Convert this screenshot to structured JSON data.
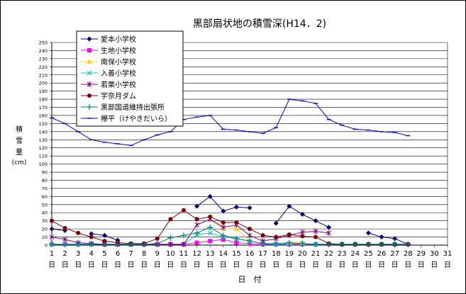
{
  "chart_data": {
    "type": "line",
    "title": "黒部扇状地の積雪深(H14．2)",
    "xlabel": "日　付",
    "ylabel": "積雪量(cm)",
    "ylabel_chars": [
      "積",
      "雪",
      "量"
    ],
    "yunit": "(cm)",
    "ylim": [
      0,
      250
    ],
    "ytick_step": 10,
    "grid": true,
    "legend_position": "top-left",
    "x": [
      1,
      2,
      3,
      4,
      5,
      6,
      7,
      8,
      9,
      10,
      11,
      12,
      13,
      14,
      15,
      16,
      17,
      18,
      19,
      20,
      21,
      22,
      23,
      24,
      25,
      26,
      27,
      28,
      29,
      30,
      31
    ],
    "xtick_suffix": "日",
    "series": [
      {
        "name": "愛本小学校",
        "color": "#000080",
        "marker": "diamond",
        "values": [
          20,
          18,
          null,
          14,
          12,
          6,
          null,
          null,
          null,
          null,
          null,
          48,
          60,
          42,
          47,
          46,
          null,
          27,
          48,
          38,
          30,
          22,
          null,
          null,
          15,
          10,
          8,
          1,
          null,
          null,
          null
        ]
      },
      {
        "name": "生地小学校",
        "color": "#FF00FF",
        "marker": "square",
        "values": [
          1,
          1,
          1,
          1,
          1,
          1,
          1,
          1,
          1,
          1,
          1,
          3,
          5,
          7,
          3,
          2,
          1,
          1,
          1,
          1,
          1,
          1,
          1,
          1,
          1,
          1,
          1,
          1,
          null,
          null,
          null
        ]
      },
      {
        "name": "南保小学校",
        "color": "#FFD700",
        "marker": "triangle",
        "values": [
          null,
          null,
          null,
          null,
          null,
          null,
          null,
          null,
          null,
          null,
          null,
          null,
          32,
          20,
          20,
          5,
          null,
          null,
          3,
          3,
          null,
          null,
          null,
          null,
          null,
          null,
          null,
          null,
          null,
          null,
          null
        ]
      },
      {
        "name": "入善小学校",
        "color": "#00CCCC",
        "marker": "x",
        "values": [
          1,
          1,
          1,
          1,
          1,
          1,
          1,
          1,
          1,
          1,
          1,
          13,
          15,
          10,
          8,
          5,
          2,
          1,
          2,
          2,
          1,
          1,
          1,
          1,
          1,
          1,
          1,
          1,
          null,
          null,
          null
        ]
      },
      {
        "name": "若栗小学校",
        "color": "#800080",
        "marker": "star",
        "values": [
          10,
          7,
          3,
          2,
          1,
          1,
          1,
          1,
          1,
          1,
          1,
          25,
          32,
          22,
          25,
          12,
          5,
          8,
          12,
          16,
          17,
          15,
          null,
          null,
          null,
          null,
          null,
          null,
          null,
          null,
          null
        ]
      },
      {
        "name": "宇奈月ダム",
        "color": "#800000",
        "marker": "circle",
        "values": [
          30,
          21,
          15,
          10,
          5,
          3,
          2,
          2,
          8,
          32,
          43,
          32,
          35,
          28,
          28,
          20,
          12,
          10,
          13,
          11,
          10,
          2,
          1,
          1,
          1,
          1,
          1,
          1,
          null,
          null,
          null
        ]
      },
      {
        "name": "黒部国道維持出張所",
        "color": "#008080",
        "marker": "plus",
        "values": [
          1,
          1,
          1,
          1,
          1,
          1,
          1,
          1,
          2,
          9,
          12,
          15,
          22,
          12,
          8,
          5,
          2,
          2,
          3,
          2,
          1,
          1,
          1,
          1,
          1,
          1,
          1,
          1,
          null,
          null,
          null
        ]
      },
      {
        "name": "欅平（けやきだいら）",
        "color": "#0000FF",
        "marker": "dash",
        "values": [
          157,
          150,
          140,
          130,
          127,
          125,
          123,
          130,
          136,
          140,
          155,
          158,
          160,
          143,
          142,
          140,
          138,
          145,
          180,
          178,
          175,
          155,
          148,
          143,
          142,
          140,
          139,
          135,
          null,
          null,
          null
        ]
      }
    ]
  }
}
